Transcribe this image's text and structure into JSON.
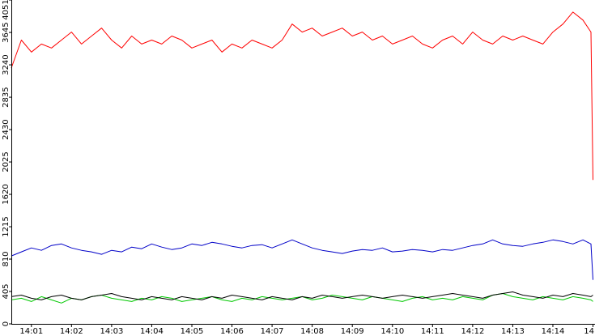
{
  "chart_data": {
    "type": "line",
    "title": "",
    "xlabel": "",
    "ylabel": "",
    "ylim": [
      0,
      4051
    ],
    "y_ticks": [
      "0",
      "405",
      "810",
      "1215",
      "1620",
      "2025",
      "2430",
      "2835",
      "3240",
      "3645",
      "4051"
    ],
    "x_ticks": [
      "14:01",
      "14:02",
      "14:03",
      "14:04",
      "14:05",
      "14:06",
      "14:07",
      "14:08",
      "14:09",
      "14:10",
      "14:11",
      "14:12",
      "14:13",
      "14:14",
      "14"
    ],
    "x_range_minutes": [
      0.5,
      15.05
    ],
    "grid": false,
    "legend": "none",
    "series": [
      {
        "color": "#ff0000",
        "x": [
          0.5,
          0.75,
          1.0,
          1.25,
          1.5,
          1.75,
          2.0,
          2.25,
          2.5,
          2.75,
          3.0,
          3.25,
          3.5,
          3.75,
          4.0,
          4.25,
          4.5,
          4.75,
          5.0,
          5.25,
          5.5,
          5.75,
          6.0,
          6.25,
          6.5,
          6.75,
          7.0,
          7.25,
          7.5,
          7.75,
          8.0,
          8.25,
          8.5,
          8.75,
          9.0,
          9.25,
          9.5,
          9.75,
          10.0,
          10.25,
          10.5,
          10.75,
          11.0,
          11.25,
          11.5,
          11.75,
          12.0,
          12.25,
          12.5,
          12.75,
          13.0,
          13.25,
          13.5,
          13.75,
          14.0,
          14.25,
          14.5,
          14.75,
          14.95,
          15.0
        ],
        "values": [
          3200,
          3550,
          3400,
          3500,
          3450,
          3550,
          3650,
          3500,
          3600,
          3700,
          3550,
          3450,
          3600,
          3500,
          3550,
          3500,
          3600,
          3550,
          3450,
          3500,
          3550,
          3400,
          3500,
          3450,
          3550,
          3500,
          3450,
          3550,
          3750,
          3650,
          3700,
          3600,
          3650,
          3700,
          3600,
          3650,
          3550,
          3600,
          3500,
          3550,
          3600,
          3500,
          3450,
          3550,
          3600,
          3500,
          3650,
          3550,
          3500,
          3600,
          3550,
          3600,
          3550,
          3500,
          3650,
          3750,
          3900,
          3800,
          3650,
          1800
        ]
      },
      {
        "color": "#0000c8",
        "x": [
          0.5,
          0.75,
          1.0,
          1.25,
          1.5,
          1.75,
          2.0,
          2.25,
          2.5,
          2.75,
          3.0,
          3.25,
          3.5,
          3.75,
          4.0,
          4.25,
          4.5,
          4.75,
          5.0,
          5.25,
          5.5,
          5.75,
          6.0,
          6.25,
          6.5,
          6.75,
          7.0,
          7.25,
          7.5,
          7.75,
          8.0,
          8.25,
          8.5,
          8.75,
          9.0,
          9.25,
          9.5,
          9.75,
          10.0,
          10.25,
          10.5,
          10.75,
          11.0,
          11.25,
          11.5,
          11.75,
          12.0,
          12.25,
          12.5,
          12.75,
          13.0,
          13.25,
          13.5,
          13.75,
          14.0,
          14.25,
          14.5,
          14.75,
          14.95,
          15.0
        ],
        "values": [
          850,
          900,
          950,
          920,
          980,
          1000,
          950,
          920,
          900,
          870,
          920,
          900,
          960,
          940,
          1000,
          960,
          930,
          950,
          1000,
          980,
          1020,
          1000,
          970,
          950,
          980,
          990,
          950,
          1000,
          1050,
          1000,
          950,
          920,
          900,
          880,
          910,
          930,
          920,
          950,
          900,
          910,
          930,
          920,
          900,
          930,
          920,
          950,
          980,
          1000,
          1050,
          1000,
          980,
          970,
          1000,
          1020,
          1050,
          1030,
          1000,
          1050,
          1000,
          550
        ]
      },
      {
        "color": "#00c800",
        "x": [
          0.5,
          0.75,
          1.0,
          1.25,
          1.5,
          1.75,
          2.0,
          2.25,
          2.5,
          2.75,
          3.0,
          3.25,
          3.5,
          3.75,
          4.0,
          4.25,
          4.5,
          4.75,
          5.0,
          5.25,
          5.5,
          5.75,
          6.0,
          6.25,
          6.5,
          6.75,
          7.0,
          7.25,
          7.5,
          7.75,
          8.0,
          8.25,
          8.5,
          8.75,
          9.0,
          9.25,
          9.5,
          9.75,
          10.0,
          10.25,
          10.5,
          10.75,
          11.0,
          11.25,
          11.5,
          11.75,
          12.0,
          12.25,
          12.5,
          12.75,
          13.0,
          13.25,
          13.5,
          13.75,
          14.0,
          14.25,
          14.5,
          14.75,
          14.95,
          15.0
        ],
        "values": [
          300,
          320,
          280,
          340,
          300,
          260,
          320,
          300,
          340,
          360,
          320,
          300,
          280,
          320,
          300,
          340,
          320,
          280,
          300,
          320,
          340,
          300,
          280,
          320,
          300,
          340,
          320,
          300,
          320,
          340,
          300,
          320,
          360,
          340,
          320,
          300,
          340,
          320,
          300,
          280,
          320,
          340,
          300,
          320,
          300,
          340,
          320,
          300,
          360,
          380,
          340,
          320,
          300,
          340,
          320,
          300,
          340,
          320,
          300,
          280
        ]
      },
      {
        "color": "#000000",
        "x": [
          0.5,
          0.75,
          1.0,
          1.25,
          1.5,
          1.75,
          2.0,
          2.25,
          2.5,
          2.75,
          3.0,
          3.25,
          3.5,
          3.75,
          4.0,
          4.25,
          4.5,
          4.75,
          5.0,
          5.25,
          5.5,
          5.75,
          6.0,
          6.25,
          6.5,
          6.75,
          7.0,
          7.25,
          7.5,
          7.75,
          8.0,
          8.25,
          8.5,
          8.75,
          9.0,
          9.25,
          9.5,
          9.75,
          10.0,
          10.25,
          10.5,
          10.75,
          11.0,
          11.25,
          11.5,
          11.75,
          12.0,
          12.25,
          12.5,
          12.75,
          13.0,
          13.25,
          13.5,
          13.75,
          14.0,
          14.25,
          14.5,
          14.75,
          14.95,
          15.0
        ],
        "values": [
          340,
          360,
          320,
          300,
          340,
          360,
          320,
          300,
          340,
          360,
          380,
          340,
          320,
          300,
          340,
          320,
          300,
          340,
          320,
          300,
          340,
          320,
          360,
          340,
          320,
          300,
          340,
          320,
          300,
          340,
          320,
          360,
          340,
          320,
          340,
          360,
          340,
          320,
          340,
          360,
          340,
          320,
          340,
          360,
          380,
          360,
          340,
          320,
          360,
          380,
          400,
          360,
          340,
          320,
          360,
          340,
          380,
          360,
          340,
          360
        ]
      }
    ]
  }
}
